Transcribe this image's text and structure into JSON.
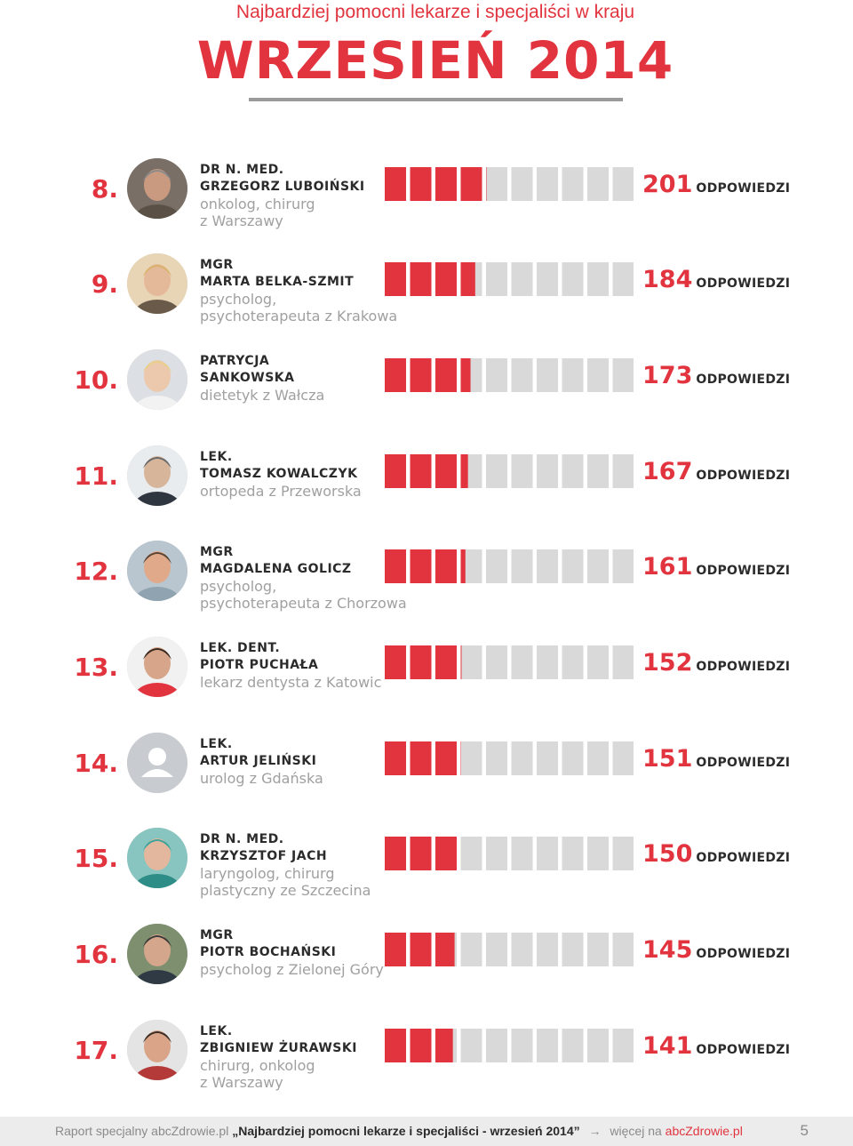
{
  "header": {
    "subtitle": "Najbardziej pomocni lekarze i specjaliści w kraju",
    "title": "WRZESIEŃ 2014"
  },
  "colors": {
    "accent": "#e2343f",
    "empty_segment": "#d9d9d9",
    "text": "#2b2b2b",
    "muted": "#a0a0a0"
  },
  "count_suffix": "ODPOWIEDZI",
  "chart_data": {
    "type": "bar",
    "segments": 10,
    "segment_value": 50,
    "categories": [
      "8.",
      "9.",
      "10.",
      "11.",
      "12.",
      "13.",
      "14.",
      "15.",
      "16.",
      "17."
    ],
    "values": [
      201,
      184,
      173,
      167,
      161,
      152,
      151,
      150,
      145,
      141
    ]
  },
  "rows": [
    {
      "rank": "8.",
      "degree": "DR N. MED.",
      "name": "GRZEGORZ LUBOIŃSKI",
      "spec": "onkolog, chirurg\nz Warszawy",
      "count": "201",
      "avatar": "photo-grey-beard"
    },
    {
      "rank": "9.",
      "degree": "MGR",
      "name": "MARTA BELKA-SZMIT",
      "spec": "psycholog,\npsychoterapeuta z Krakowa",
      "count": "184",
      "avatar": "photo-blonde"
    },
    {
      "rank": "10.",
      "degree": "PATRYCJA",
      "name": "SANKOWSKA",
      "spec": "dietetyk z Wałcza",
      "count": "173",
      "avatar": "photo-blonde-light"
    },
    {
      "rank": "11.",
      "degree": "LEK.",
      "name": "TOMASZ KOWALCZYK",
      "spec": "ortopeda z Przeworska",
      "count": "167",
      "avatar": "photo-computer"
    },
    {
      "rank": "12.",
      "degree": "MGR",
      "name": "MAGDALENA GOLICZ",
      "spec": "psycholog,\npsychoterapeuta z Chorzowa",
      "count": "161",
      "avatar": "photo-smile"
    },
    {
      "rank": "13.",
      "degree": "LEK. DENT.",
      "name": "PIOTR PUCHAŁA",
      "spec": "lekarz dentysta z Katowic",
      "count": "152",
      "avatar": "photo-red-shirt"
    },
    {
      "rank": "14.",
      "degree": "LEK.",
      "name": "ARTUR JELIŃSKI",
      "spec": "urolog z Gdańska",
      "count": "151",
      "avatar": "placeholder"
    },
    {
      "rank": "15.",
      "degree": "DR N. MED.",
      "name": "KRZYSZTOF JACH",
      "spec": "laryngolog, chirurg\nplastyczny ze Szczecina",
      "count": "150",
      "avatar": "photo-surgeon"
    },
    {
      "rank": "16.",
      "degree": "MGR",
      "name": "PIOTR BOCHAŃSKI",
      "spec": "psycholog z Zielonej Góry",
      "count": "145",
      "avatar": "photo-outdoor"
    },
    {
      "rank": "17.",
      "degree": "LEK.",
      "name": "ZBIGNIEW ŻURAWSKI",
      "spec": "chirurg, onkolog\nz Warszawy",
      "count": "141",
      "avatar": "photo-dark-hair"
    }
  ],
  "footer": {
    "prefix": "Raport specjalny abcZdrowie.pl",
    "report_title": "„Najbardziej pomocni lekarze i specjaliści - wrzesień 2014”",
    "more": "więcej na",
    "site": "abcZdrowie.pl",
    "page": "5"
  }
}
